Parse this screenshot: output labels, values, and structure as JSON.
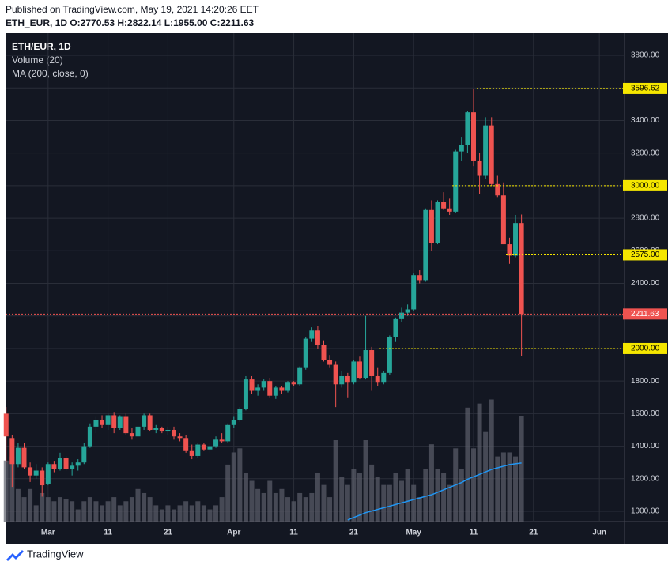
{
  "header": "Published on TradingView.com, May 19, 2021 14:20:26 EET",
  "footer": "TradingView",
  "chart_data": {
    "type": "candlestick",
    "title": "ETH/EUR, 1D",
    "info": "ETH_EUR, 1D  O:2770.53 H:2822.14 L:1955.00 C:2211.63",
    "legend": [
      "Volume (20)",
      "MA (200, close, 0)"
    ],
    "colors": {
      "up": "#26a69a",
      "down": "#ef5350",
      "volume": "#5d606b",
      "ma": "#2196f3",
      "level": "#f5e600",
      "last": "#ef5350",
      "background": "#131722",
      "grid": "#2a2e39"
    },
    "grid": true,
    "x": [
      0,
      1,
      2,
      3,
      4,
      5,
      6,
      7,
      8,
      9,
      10,
      11,
      12,
      13,
      14,
      15,
      16,
      17,
      18,
      19,
      20,
      21,
      22,
      23,
      24,
      25,
      26,
      27,
      28,
      29,
      30,
      31,
      32,
      33,
      34,
      35,
      36,
      37,
      38,
      39,
      40,
      41,
      42,
      43,
      44,
      45,
      46,
      47,
      48,
      49,
      50,
      51,
      52,
      53,
      54,
      55,
      56,
      57,
      58,
      59,
      60,
      61,
      62,
      63,
      64,
      65,
      66,
      67,
      68,
      69,
      70,
      71,
      72,
      73,
      74,
      75,
      76,
      77,
      78,
      79,
      80,
      81,
      82,
      83,
      84,
      85,
      86
    ],
    "xlim": [
      -0.1,
      103.2
    ],
    "xticks": [
      {
        "value": 7,
        "label": "Mar"
      },
      {
        "value": 17,
        "label": "11"
      },
      {
        "value": 27,
        "label": "21"
      },
      {
        "value": 38,
        "label": "Apr"
      },
      {
        "value": 48,
        "label": "11"
      },
      {
        "value": 58,
        "label": "21"
      },
      {
        "value": 68,
        "label": "May"
      },
      {
        "value": 78,
        "label": "11"
      },
      {
        "value": 88,
        "label": "21"
      },
      {
        "value": 99,
        "label": "Jun"
      }
    ],
    "ylim": [
      937,
      3936
    ],
    "yticks": [
      {
        "value": 1000,
        "label": "1000.00"
      },
      {
        "value": 1200,
        "label": "1200.00"
      },
      {
        "value": 1400,
        "label": "1400.00"
      },
      {
        "value": 1600,
        "label": "1600.00"
      },
      {
        "value": 1800,
        "label": "1800.00"
      },
      {
        "value": 2000,
        "label": "2000.00"
      },
      {
        "value": 2200,
        "label": "2200.00"
      },
      {
        "value": 2400,
        "label": "2400.00"
      },
      {
        "value": 2600,
        "label": "2600.00"
      },
      {
        "value": 2800,
        "label": "2800.00"
      },
      {
        "value": 3000,
        "label": "3000.00"
      },
      {
        "value": 3200,
        "label": "3200.00"
      },
      {
        "value": 3400,
        "label": "3400.00"
      },
      {
        "value": 3600,
        "label": "3600.00"
      },
      {
        "value": 3800,
        "label": "3800.00"
      }
    ],
    "open": [
      1600,
      1450,
      1290,
      1390,
      1270,
      1220,
      1250,
      1170,
      1290,
      1260,
      1330,
      1260,
      1280,
      1300,
      1400,
      1520,
      1560,
      1530,
      1590,
      1510,
      1580,
      1480,
      1460,
      1520,
      1590,
      1500,
      1510,
      1490,
      1500,
      1460,
      1450,
      1370,
      1340,
      1410,
      1380,
      1400,
      1440,
      1430,
      1530,
      1560,
      1630,
      1810,
      1740,
      1760,
      1800,
      1710,
      1760,
      1740,
      1790,
      1780,
      1880,
      2060,
      2110,
      2020,
      1930,
      1900,
      1780,
      1830,
      1790,
      1920,
      1820,
      1990,
      1830,
      1790,
      1850,
      2070,
      2180,
      2220,
      2240,
      2450,
      2420,
      2850,
      2650,
      2900,
      2860,
      2840,
      3210,
      3250,
      3450,
      3150,
      3060,
      3370,
      3010,
      2940,
      2640,
      2570,
      2770.53
    ],
    "high": [
      1640,
      1470,
      1420,
      1420,
      1300,
      1290,
      1270,
      1300,
      1310,
      1360,
      1340,
      1300,
      1320,
      1420,
      1540,
      1580,
      1590,
      1600,
      1610,
      1590,
      1600,
      1510,
      1530,
      1600,
      1600,
      1530,
      1520,
      1520,
      1520,
      1480,
      1470,
      1410,
      1420,
      1420,
      1420,
      1460,
      1480,
      1540,
      1580,
      1640,
      1830,
      1830,
      1780,
      1810,
      1820,
      1770,
      1770,
      1800,
      1800,
      1890,
      2070,
      2130,
      2140,
      2050,
      1960,
      1920,
      1860,
      1850,
      1930,
      1950,
      2200,
      2010,
      1880,
      1860,
      2080,
      2190,
      2250,
      2270,
      2460,
      2480,
      2860,
      2910,
      2910,
      2960,
      2920,
      3220,
      3300,
      3460,
      3596.62,
      3200,
      3420,
      3420,
      3060,
      3020,
      2680,
      2820,
      2822.14
    ],
    "low": [
      1300,
      1150,
      1270,
      1260,
      1180,
      1200,
      1090,
      1160,
      1240,
      1250,
      1250,
      1220,
      1250,
      1290,
      1390,
      1480,
      1510,
      1500,
      1480,
      1500,
      1470,
      1440,
      1450,
      1500,
      1490,
      1480,
      1480,
      1470,
      1440,
      1430,
      1360,
      1320,
      1330,
      1370,
      1360,
      1390,
      1420,
      1420,
      1510,
      1550,
      1620,
      1720,
      1710,
      1740,
      1700,
      1690,
      1720,
      1730,
      1770,
      1770,
      1870,
      2040,
      2000,
      1920,
      1880,
      1640,
      1760,
      1700,
      1780,
      1810,
      1810,
      1740,
      1770,
      1780,
      1840,
      2040,
      2160,
      2200,
      2230,
      2400,
      2410,
      2600,
      2640,
      2850,
      2820,
      2830,
      3150,
      3200,
      3120,
      2950,
      3040,
      3000,
      2930,
      2640,
      2520,
      2560,
      1955
    ],
    "close": [
      1460,
      1290,
      1390,
      1270,
      1220,
      1250,
      1160,
      1290,
      1260,
      1330,
      1260,
      1280,
      1300,
      1400,
      1520,
      1560,
      1530,
      1590,
      1510,
      1580,
      1480,
      1460,
      1520,
      1590,
      1500,
      1510,
      1490,
      1500,
      1460,
      1450,
      1370,
      1340,
      1410,
      1380,
      1400,
      1440,
      1430,
      1530,
      1560,
      1630,
      1810,
      1740,
      1760,
      1800,
      1710,
      1760,
      1740,
      1790,
      1780,
      1880,
      2060,
      2110,
      2020,
      1930,
      1900,
      1780,
      1830,
      1790,
      1920,
      1820,
      1990,
      1830,
      1790,
      1850,
      2070,
      2180,
      2220,
      2240,
      2450,
      2420,
      2850,
      2650,
      2900,
      2860,
      2840,
      3210,
      3250,
      3450,
      3150,
      3060,
      3370,
      3010,
      2940,
      2640,
      2570,
      2770.53,
      2211.63
    ],
    "volume": [
      75,
      80,
      40,
      30,
      40,
      20,
      35,
      30,
      25,
      30,
      28,
      25,
      15,
      25,
      30,
      25,
      20,
      25,
      30,
      20,
      25,
      30,
      40,
      35,
      30,
      20,
      15,
      20,
      15,
      20,
      25,
      20,
      25,
      20,
      15,
      20,
      30,
      70,
      85,
      90,
      60,
      50,
      40,
      35,
      50,
      35,
      40,
      30,
      25,
      35,
      30,
      35,
      60,
      45,
      30,
      100,
      55,
      45,
      65,
      60,
      100,
      70,
      55,
      45,
      45,
      60,
      50,
      65,
      45,
      30,
      65,
      95,
      65,
      60,
      45,
      90,
      65,
      140,
      90,
      145,
      110,
      150,
      80,
      85,
      85,
      80,
      130
    ],
    "volume_ma": [
      null,
      null,
      null,
      null,
      null,
      null,
      null,
      null,
      null,
      null,
      null,
      null,
      null,
      null,
      null,
      null,
      null,
      null,
      null,
      null,
      null,
      null,
      null,
      null,
      null,
      null,
      null,
      null,
      null,
      null,
      null,
      null,
      null,
      null,
      null,
      null,
      null,
      null,
      null,
      null,
      null,
      null,
      null,
      null,
      null,
      null,
      null,
      null,
      null,
      null,
      null,
      null,
      null,
      null,
      null,
      null,
      null,
      2,
      5,
      8,
      11,
      13,
      15,
      17,
      19,
      21,
      23,
      25,
      27,
      29,
      31,
      33,
      36,
      39,
      42,
      45,
      48,
      52,
      55,
      58,
      61,
      64,
      66,
      68,
      70,
      71,
      72
    ],
    "levels": [
      {
        "value": 3596.62,
        "label": "3596.62"
      },
      {
        "value": 3000,
        "label": "3000.00"
      },
      {
        "value": 2575,
        "label": "2575.00"
      },
      {
        "value": 2000,
        "label": "2000.00"
      }
    ],
    "last": {
      "value": 2211.63,
      "label": "2211.63"
    }
  }
}
